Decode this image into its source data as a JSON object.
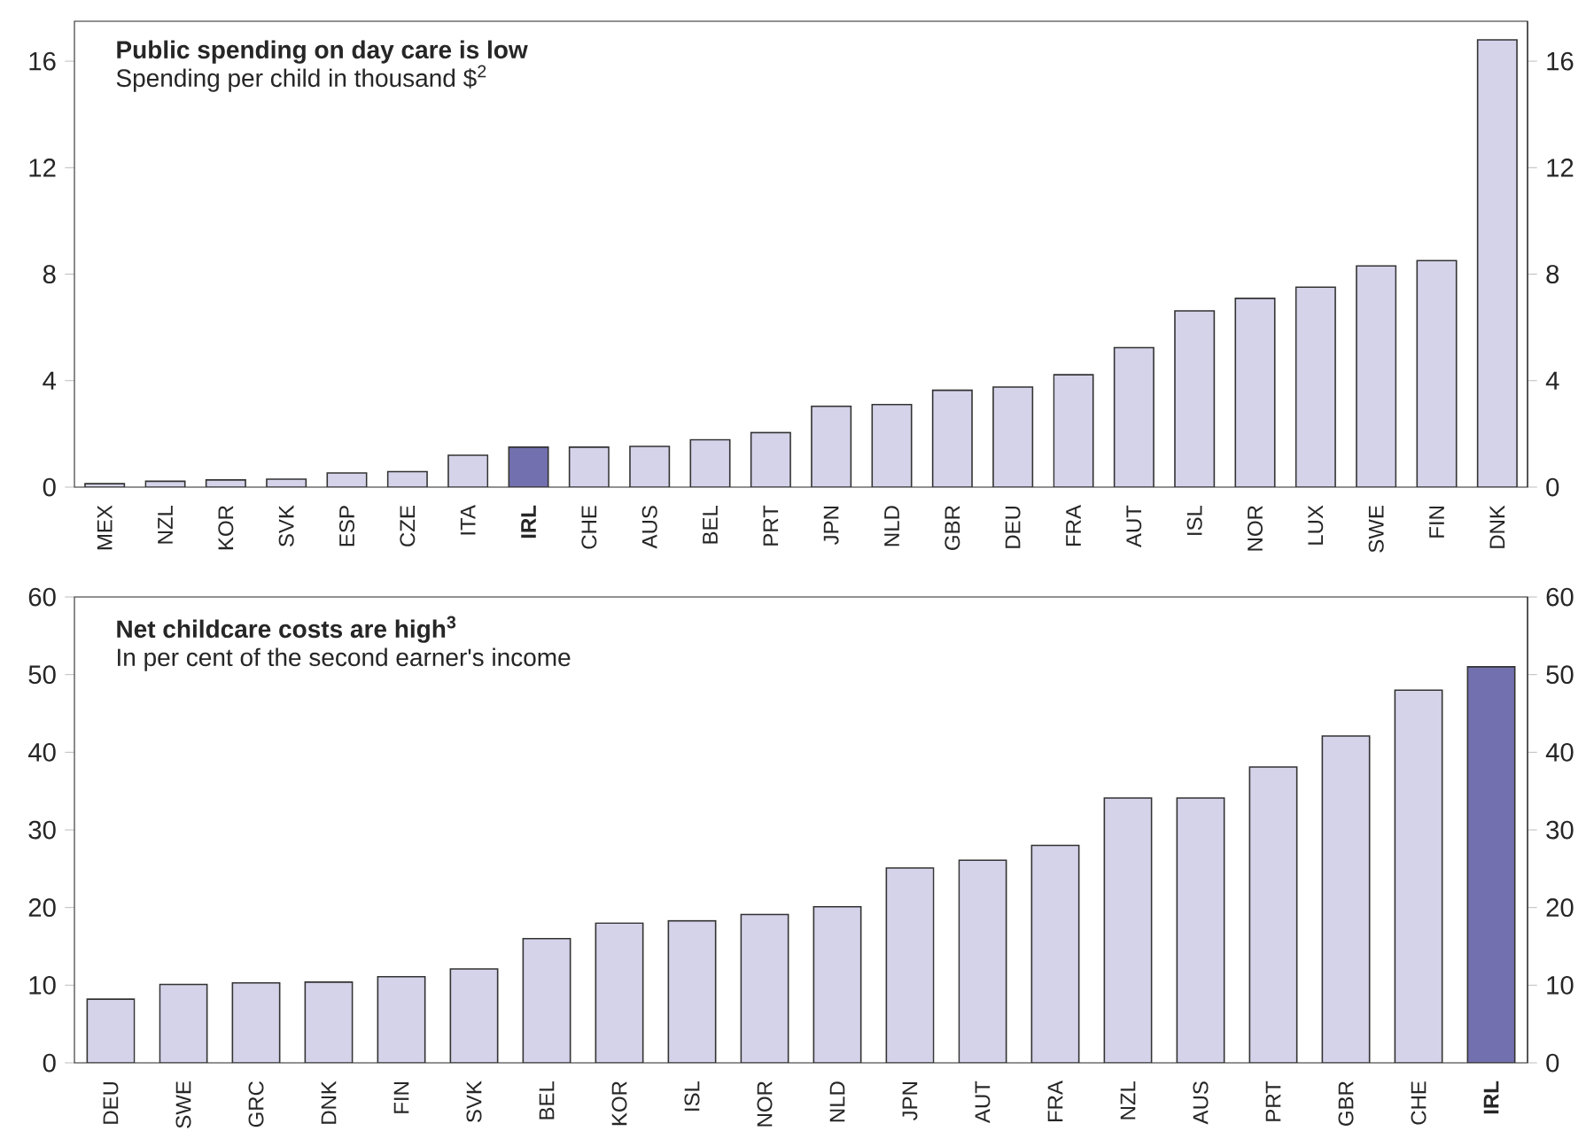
{
  "chart_data": [
    {
      "type": "bar",
      "title": "Public spending on day care is low",
      "subtitle": "Spending per child in thousand $$^{2}$",
      "categories": [
        "MEX",
        "NZL",
        "KOR",
        "SVK",
        "ESP",
        "CZE",
        "ITA",
        "IRL",
        "CHE",
        "AUS",
        "BEL",
        "PRT",
        "JPN",
        "NLD",
        "GBR",
        "DEU",
        "FRA",
        "AUT",
        "ISL",
        "NOR",
        "LUX",
        "SWE",
        "FIN",
        "DNK"
      ],
      "values": [
        0.13,
        0.22,
        0.27,
        0.3,
        0.53,
        0.58,
        1.2,
        1.5,
        1.5,
        1.53,
        1.78,
        2.05,
        3.04,
        3.1,
        3.64,
        3.76,
        4.22,
        5.24,
        6.62,
        7.09,
        7.51,
        8.31,
        8.51,
        16.8
      ],
      "colors": [
        "#d4d3ea",
        "#d4d3ea",
        "#d4d3ea",
        "#d4d3ea",
        "#d4d3ea",
        "#d4d3ea",
        "#d4d3ea",
        "#7370b0",
        "#d4d3ea",
        "#d4d3ea",
        "#d4d3ea",
        "#d4d3ea",
        "#d4d3ea",
        "#d4d3ea",
        "#d4d3ea",
        "#d4d3ea",
        "#d4d3ea",
        "#d4d3ea",
        "#d4d3ea",
        "#d4d3ea",
        "#d4d3ea",
        "#d4d3ea",
        "#d4d3ea",
        "#d4d3ea"
      ],
      "ylim": [
        0,
        17.5
      ],
      "yticks": [
        0,
        4,
        8,
        12,
        16
      ],
      "y2lim": [
        0,
        17.5
      ],
      "y2ticks": [
        0,
        4,
        8,
        12,
        16
      ]
    },
    {
      "type": "bar",
      "title": "Net childcare costs are high$^{3}$",
      "subtitle": "In per cent of the second earner's income",
      "categories": [
        "DEU",
        "SWE",
        "GRC",
        "DNK",
        "FIN",
        "SVK",
        "BEL",
        "KOR",
        "ISL",
        "NOR",
        "NLD",
        "JPN",
        "AUT",
        "FRA",
        "NZL",
        "AUS",
        "PRT",
        "GBR",
        "CHE",
        "IRL"
      ],
      "values": [
        8.2,
        10.1,
        10.3,
        10.4,
        11.1,
        12.1,
        16,
        18,
        18.3,
        19.1,
        20.1,
        25.1,
        26.1,
        28,
        34.1,
        34.1,
        38.1,
        42.1,
        48,
        51
      ],
      "colors": [
        "#d4d3ea",
        "#d4d3ea",
        "#d4d3ea",
        "#d4d3ea",
        "#d4d3ea",
        "#d4d3ea",
        "#d4d3ea",
        "#d4d3ea",
        "#d4d3ea",
        "#d4d3ea",
        "#d4d3ea",
        "#d4d3ea",
        "#d4d3ea",
        "#d4d3ea",
        "#d4d3ea",
        "#d4d3ea",
        "#d4d3ea",
        "#d4d3ea",
        "#d4d3ea",
        "#7370b0"
      ],
      "ylim": [
        0,
        60
      ],
      "yticks": [
        0,
        10,
        20,
        30,
        40,
        50,
        60
      ],
      "y2lim": [
        0,
        60
      ],
      "y2ticks": [
        0,
        10,
        20,
        30,
        40,
        50,
        60
      ]
    }
  ]
}
